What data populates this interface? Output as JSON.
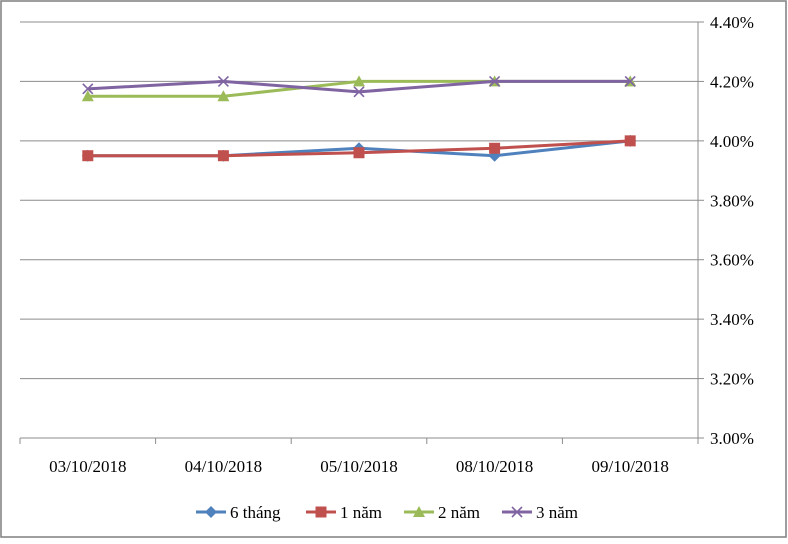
{
  "chart_data": {
    "type": "line",
    "categories": [
      "03/10/2018",
      "04/10/2018",
      "05/10/2018",
      "08/10/2018",
      "09/10/2018"
    ],
    "series": [
      {
        "name": "6 tháng",
        "values": [
          3.95,
          3.95,
          3.975,
          3.95,
          4.0
        ],
        "color": "#4f81bd",
        "marker": "diamond"
      },
      {
        "name": "1 năm",
        "values": [
          3.95,
          3.95,
          3.96,
          3.975,
          4.0
        ],
        "color": "#c0504d",
        "marker": "square"
      },
      {
        "name": "2 năm",
        "values": [
          4.15,
          4.15,
          4.2,
          4.2,
          4.2
        ],
        "color": "#9bbb59",
        "marker": "triangle"
      },
      {
        "name": "3 năm",
        "values": [
          4.175,
          4.2,
          4.165,
          4.2,
          4.2
        ],
        "color": "#8064a2",
        "marker": "x"
      }
    ],
    "y_ticks": [
      "3.00%",
      "3.20%",
      "3.40%",
      "3.60%",
      "3.80%",
      "4.00%",
      "4.20%",
      "4.40%"
    ],
    "ylim": [
      3.0,
      4.4
    ],
    "y_axis_position": "right",
    "grid": true,
    "legend_position": "bottom",
    "title": "",
    "xlabel": "",
    "ylabel": ""
  }
}
